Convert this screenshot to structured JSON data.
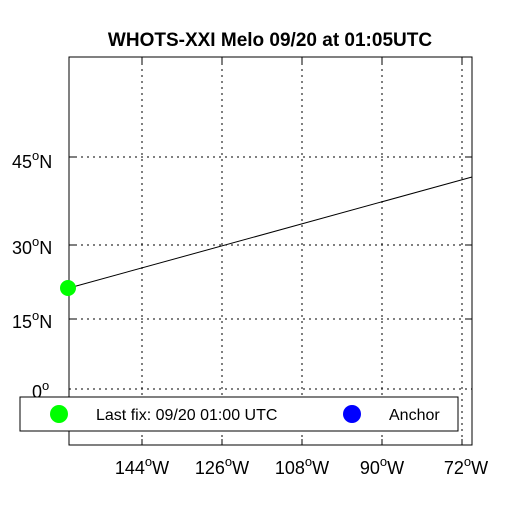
{
  "map": {
    "title": "WHOTS-XXI Melo 09/20 at 01:05UTC",
    "lat_ticks": [
      {
        "deg": "45",
        "hemi": "N"
      },
      {
        "deg": "30",
        "hemi": "N"
      },
      {
        "deg": "15",
        "hemi": "N"
      },
      {
        "deg": "0",
        "hemi": ""
      }
    ],
    "lon_ticks": [
      {
        "deg": "144",
        "hemi": "W"
      },
      {
        "deg": "126",
        "hemi": "W"
      },
      {
        "deg": "108",
        "hemi": "W"
      },
      {
        "deg": "90",
        "hemi": "W"
      },
      {
        "deg": "72",
        "hemi": "W"
      }
    ],
    "grid": "dotted",
    "track_line_color": "#000000",
    "last_fix_marker_color": "#00ff00",
    "anchor_marker_color": "#0000ff",
    "legend": {
      "last_fix_label": "Last fix: 09/20 01:00 UTC",
      "anchor_label": "Anchor"
    }
  }
}
